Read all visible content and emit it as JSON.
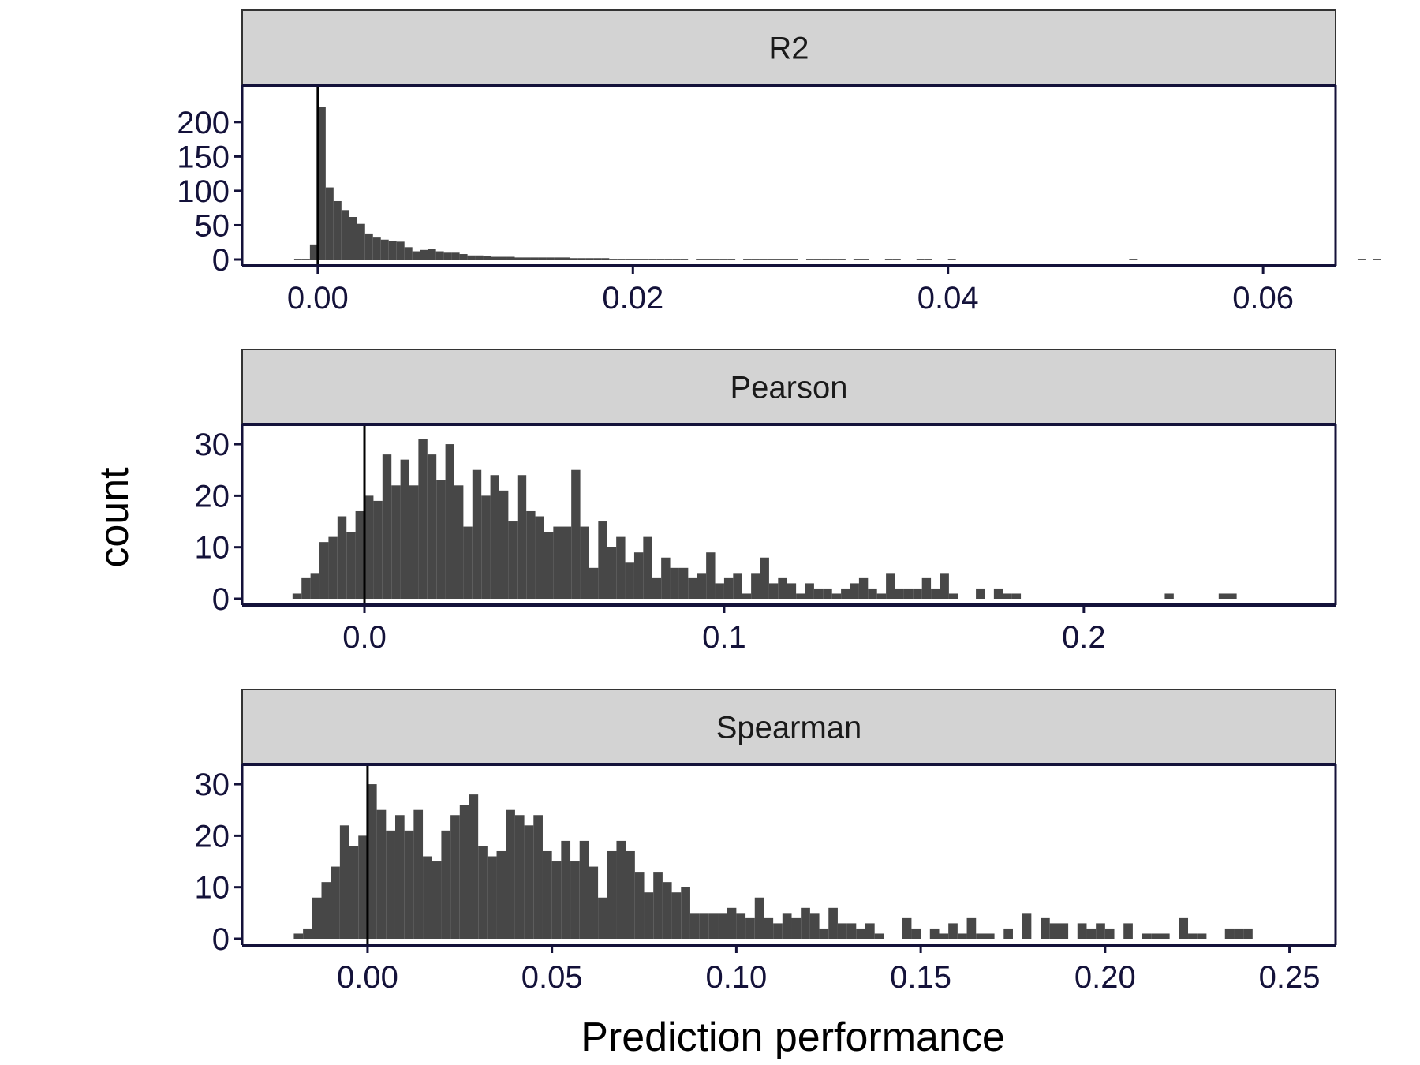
{
  "chart_data": {
    "type": "bar",
    "layout": "faceted-histogram",
    "xlabel": "Prediction performance",
    "ylabel": "count",
    "colors": {
      "bar": "#474747",
      "strip_fill": "#d3d3d3",
      "axis": "#14123a",
      "vline": "#000000"
    },
    "panels": [
      {
        "label": "R2",
        "xlim": [
          -0.0048,
          0.0646
        ],
        "ylim": [
          0,
          240
        ],
        "xticks": [
          0,
          0.02,
          0.04,
          0.06
        ],
        "xtick_labels": [
          "0.00",
          "0.02",
          "0.04",
          "0.06"
        ],
        "yticks": [
          0,
          50,
          100,
          150,
          200
        ],
        "yticks_labels": [
          "0",
          "50",
          "100",
          "150",
          "200"
        ],
        "vline": 0,
        "bin_start": -0.0015,
        "bin_width": 0.0005,
        "counts": [
          1,
          1,
          22,
          222,
          105,
          85,
          72,
          62,
          52,
          38,
          32,
          29,
          27,
          26,
          18,
          12,
          14,
          15,
          12,
          10,
          10,
          8,
          6,
          6,
          5,
          4,
          4,
          4,
          3,
          3,
          3,
          3,
          3,
          3,
          3,
          2,
          2,
          2,
          2,
          2,
          1,
          1,
          1,
          1,
          1,
          1,
          1,
          1,
          1,
          1,
          0,
          1,
          1,
          1,
          1,
          1,
          0,
          1,
          1,
          1,
          1,
          1,
          1,
          1,
          0,
          1,
          1,
          1,
          1,
          1,
          0,
          1,
          1,
          0,
          0,
          1,
          1,
          0,
          0,
          1,
          1,
          0,
          0,
          1,
          0,
          0,
          0,
          0,
          0,
          0,
          0,
          0,
          0,
          0,
          0,
          0,
          0,
          0,
          0,
          0,
          0,
          0,
          0,
          0,
          0,
          0,
          1,
          0,
          0,
          0,
          0,
          0,
          0,
          0,
          0,
          0,
          0,
          0,
          0,
          0,
          0,
          0,
          0,
          0,
          0,
          0,
          0,
          0,
          0,
          0,
          0,
          0,
          0,
          0,
          0,
          1,
          0,
          1
        ]
      },
      {
        "label": "Pearson",
        "xlim": [
          -0.034,
          0.27
        ],
        "ylim": [
          0,
          32
        ],
        "xticks": [
          0,
          0.1,
          0.2
        ],
        "xtick_labels": [
          "0.0",
          "0.1",
          "0.2"
        ],
        "yticks": [
          0,
          10,
          20,
          30
        ],
        "yticks_labels": [
          "0",
          "10",
          "20",
          "30"
        ],
        "vline": 0,
        "bin_start": -0.02,
        "bin_width": 0.0025,
        "counts": [
          1,
          4,
          5,
          11,
          12,
          16,
          13,
          17,
          20,
          19,
          28,
          22,
          27,
          22,
          31,
          28,
          23,
          30,
          22,
          14,
          25,
          20,
          24,
          21,
          15,
          24,
          17,
          16,
          13,
          14,
          14,
          25,
          14,
          6,
          15,
          10,
          12,
          7,
          9,
          12,
          4,
          8,
          6,
          6,
          4,
          5,
          9,
          3,
          4,
          5,
          1,
          5,
          8,
          3,
          4,
          3,
          1,
          3,
          2,
          2,
          1,
          2,
          3,
          4,
          2,
          1,
          5,
          2,
          2,
          2,
          4,
          2,
          5,
          1,
          0,
          0,
          2,
          0,
          2,
          1,
          1,
          0,
          0,
          0,
          0,
          0,
          0,
          0,
          0,
          0,
          0,
          0,
          0,
          0,
          0,
          0,
          0,
          1,
          0,
          0,
          0,
          0,
          0,
          1,
          1
        ]
      },
      {
        "label": "Spearman",
        "xlim": [
          -0.034,
          0.2625
        ],
        "ylim": [
          0,
          32
        ],
        "xticks": [
          0,
          0.05,
          0.1,
          0.15,
          0.2,
          0.25
        ],
        "xtick_labels": [
          "0.00",
          "0.05",
          "0.10",
          "0.15",
          "0.20",
          "0.25"
        ],
        "yticks": [
          0,
          10,
          20,
          30
        ],
        "yticks_labels": [
          "0",
          "10",
          "20",
          "30"
        ],
        "vline": 0,
        "bin_start": -0.02,
        "bin_width": 0.0025,
        "counts": [
          1,
          2,
          8,
          11,
          14,
          22,
          18,
          20,
          30,
          25,
          21,
          24,
          21,
          25,
          16,
          15,
          21,
          24,
          26,
          28,
          18,
          16,
          17,
          25,
          24,
          22,
          24,
          17,
          15,
          19,
          15,
          19,
          14,
          8,
          17,
          19,
          17,
          13,
          9,
          13,
          11,
          9,
          10,
          5,
          5,
          5,
          5,
          6,
          5,
          4,
          8,
          4,
          3,
          5,
          4,
          6,
          5,
          2,
          6,
          3,
          3,
          2,
          3,
          1,
          0,
          0,
          4,
          2,
          0,
          2,
          1,
          3,
          1,
          4,
          1,
          1,
          0,
          2,
          0,
          5,
          0,
          4,
          3,
          3,
          0,
          3,
          2,
          3,
          2,
          0,
          3,
          0,
          1,
          1,
          1,
          0,
          4,
          1,
          1,
          0,
          0,
          2,
          2,
          2
        ]
      }
    ]
  }
}
